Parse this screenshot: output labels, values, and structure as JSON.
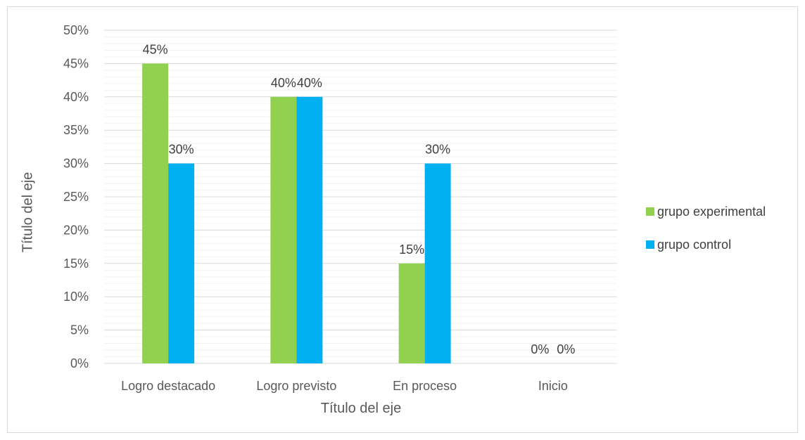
{
  "chart_data": {
    "type": "bar",
    "categories": [
      "Logro destacado",
      "Logro previsto",
      "En proceso",
      "Inicio"
    ],
    "series": [
      {
        "name": "grupo experimental",
        "values": [
          45,
          40,
          15,
          0
        ],
        "labels": [
          "45%",
          "40%",
          "15%",
          "0%"
        ],
        "color": "#92d050"
      },
      {
        "name": "grupo control",
        "values": [
          30,
          40,
          30,
          0
        ],
        "labels": [
          "30%",
          "40%",
          "30%",
          "0%"
        ],
        "color": "#00b0f0"
      }
    ],
    "xlabel": "Título del eje",
    "ylabel": "Título del eje",
    "ylim": [
      0,
      50
    ],
    "yticks": [
      0,
      5,
      10,
      15,
      20,
      25,
      30,
      35,
      40,
      45,
      50
    ],
    "ytick_labels": [
      "0%",
      "5%",
      "10%",
      "15%",
      "20%",
      "25%",
      "30%",
      "35%",
      "40%",
      "45%",
      "50%"
    ],
    "grid": true,
    "legend": "right"
  }
}
